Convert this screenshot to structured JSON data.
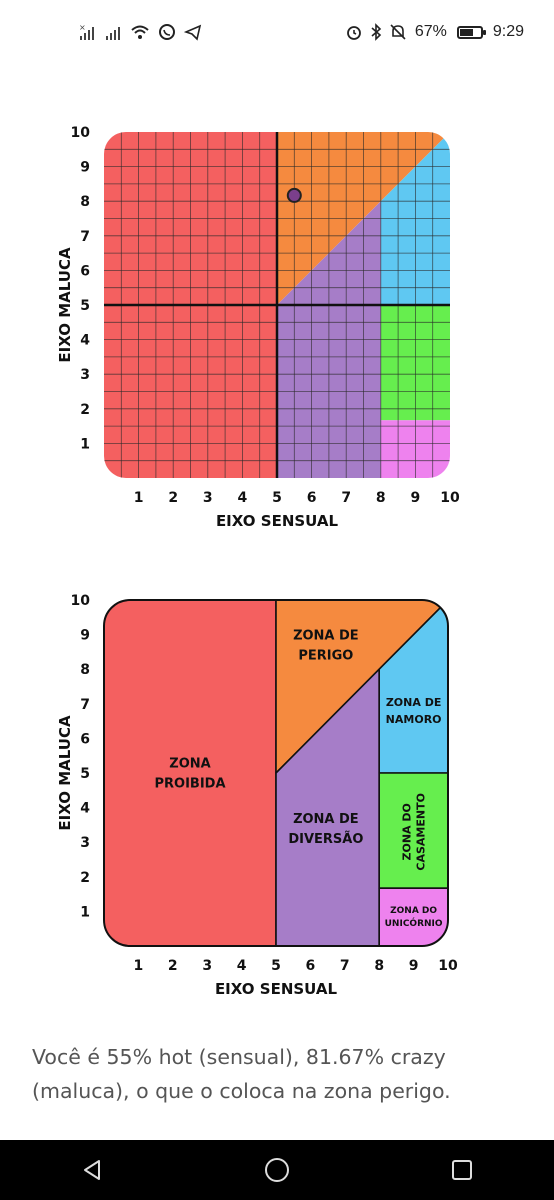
{
  "status_bar": {
    "time": "9:29",
    "battery_percent": "67%",
    "battery_level": 0.67,
    "left_icons": [
      "sim-no-signal-icon",
      "signal-icon",
      "wifi-icon",
      "whatsapp-icon",
      "telegram-icon"
    ],
    "right_icons": [
      "alarm-icon",
      "bluetooth-icon",
      "mute-icon",
      "battery-icon"
    ]
  },
  "chart_data": [
    {
      "type": "scatter",
      "x": [
        5.5
      ],
      "y": [
        8.1667
      ],
      "xlabel": "EIXO SENSUAL",
      "ylabel": "EIXO MALUCA",
      "xlim": [
        0,
        10
      ],
      "ylim": [
        0,
        10
      ],
      "xticks": [
        "1",
        "2",
        "3",
        "4",
        "5",
        "6",
        "7",
        "8",
        "9",
        "10"
      ],
      "yticks": [
        "1",
        "2",
        "3",
        "4",
        "5",
        "6",
        "7",
        "8",
        "9",
        "10"
      ],
      "grid": true,
      "point_color": "#7b3f8c",
      "zone_colors": {
        "proibida": "#f46060",
        "perigo": "#f58a3f",
        "diversao": "#a67dc8",
        "namoro": "#5fc8f2",
        "casamento": "#66ee4e",
        "unicornio": "#ee82ee"
      }
    },
    {
      "type": "area",
      "xlabel": "EIXO SENSUAL",
      "ylabel": "EIXO MALUCA",
      "xlim": [
        0,
        10
      ],
      "ylim": [
        0,
        10
      ],
      "xticks": [
        "1",
        "2",
        "3",
        "4",
        "5",
        "6",
        "7",
        "8",
        "9",
        "10"
      ],
      "yticks": [
        "1",
        "2",
        "3",
        "4",
        "5",
        "6",
        "7",
        "8",
        "9",
        "10"
      ],
      "grid": false,
      "zones": [
        {
          "id": "proibida",
          "lines": [
            "ZONA",
            "PROIBIDA"
          ],
          "color": "#f46060",
          "polygon": [
            [
              0,
              0
            ],
            [
              5,
              0
            ],
            [
              5,
              10
            ],
            [
              0,
              10
            ]
          ]
        },
        {
          "id": "perigo",
          "lines": [
            "ZONA DE",
            "PERIGO"
          ],
          "color": "#f58a3f",
          "polygon": [
            [
              5,
              5
            ],
            [
              5,
              10
            ],
            [
              10,
              10
            ]
          ]
        },
        {
          "id": "diversao",
          "lines": [
            "ZONA DE",
            "DIVERSÃO"
          ],
          "color": "#a67dc8",
          "polygon": [
            [
              5,
              0
            ],
            [
              8,
              0
            ],
            [
              8,
              8
            ],
            [
              5,
              5
            ]
          ]
        },
        {
          "id": "namoro",
          "lines": [
            "ZONA DE",
            "NAMORO"
          ],
          "color": "#5fc8f2",
          "polygon": [
            [
              8,
              5
            ],
            [
              10,
              5
            ],
            [
              10,
              10
            ],
            [
              8,
              8
            ]
          ]
        },
        {
          "id": "casamento",
          "lines": [
            "ZONA DO",
            "CASAMENTO"
          ],
          "color": "#66ee4e",
          "polygon": [
            [
              8,
              1.67
            ],
            [
              10,
              1.67
            ],
            [
              10,
              5
            ],
            [
              8,
              5
            ]
          ]
        },
        {
          "id": "unicornio",
          "lines": [
            "ZONA DO",
            "UNICÓRNIO"
          ],
          "color": "#ee82ee",
          "polygon": [
            [
              8,
              0
            ],
            [
              10,
              0
            ],
            [
              10,
              1.67
            ],
            [
              8,
              1.67
            ]
          ]
        }
      ]
    }
  ],
  "result": {
    "text": "Você é 55% hot (sensual), 81.67% crazy (maluca), o que o coloca na zona perigo."
  },
  "nav_bar": {
    "icons": [
      "back-icon",
      "home-icon",
      "recents-icon"
    ]
  }
}
